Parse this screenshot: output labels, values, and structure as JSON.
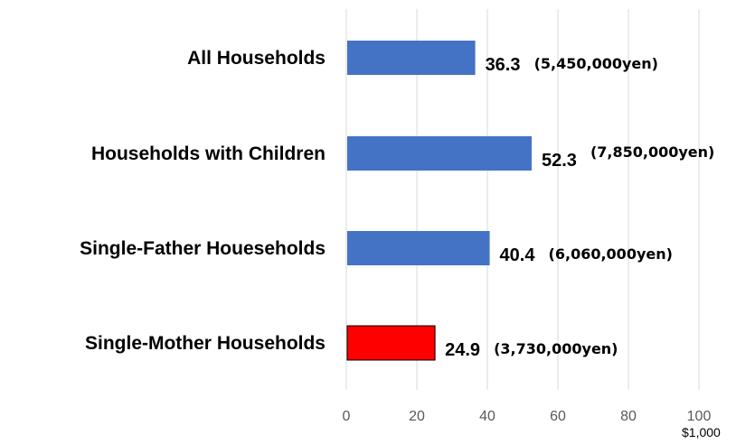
{
  "chart_data": {
    "type": "bar",
    "orientation": "horizontal",
    "categories": [
      "All Households",
      "Households with Children",
      "Single-Father Houeseholds",
      "Single-Mother Households"
    ],
    "values": [
      36.3,
      52.3,
      40.4,
      24.9
    ],
    "value_labels": [
      "36.3",
      "52.3",
      "40.4",
      "24.9"
    ],
    "annotations": [
      "(5,450,000yen)",
      "(7,850,000yen)",
      "(6,060,000yen)",
      "(3,730,000yen)"
    ],
    "bar_colors": [
      "#4472c4",
      "#4472c4",
      "#4472c4",
      "#ff0000"
    ],
    "xlim": [
      0,
      100
    ],
    "xticks": [
      "0",
      "20",
      "40",
      "60",
      "80",
      "100"
    ],
    "x_unit": "$1,000",
    "grid": true,
    "legend": "none"
  }
}
